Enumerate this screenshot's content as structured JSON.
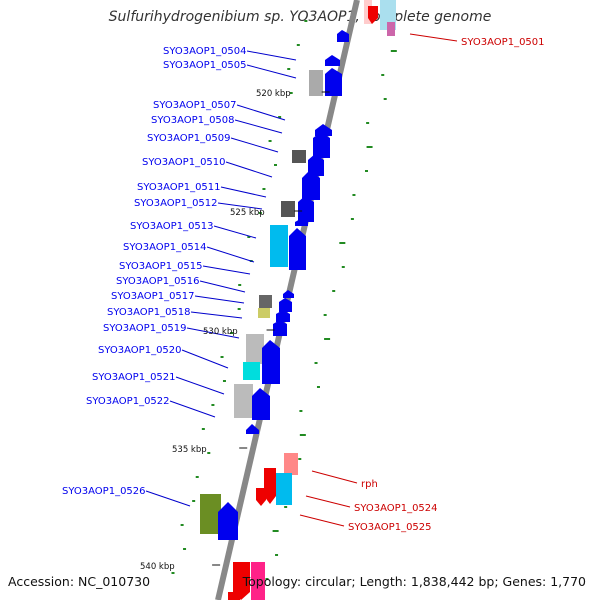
{
  "title": "Sulfurihydrogenibium sp. YO3AOP1, complete genome",
  "footer": {
    "accession": "Accession: NC_010730",
    "summary": "Topology: circular; Length: 1,838,442 bp; Genes: 1,770"
  },
  "scale_labels": [
    "520 kbp",
    "525 kbp",
    "530 kbp",
    "535 kbp",
    "540 kbp"
  ],
  "forward_genes": [
    "SYO3AOP1_0501",
    "rph",
    "SYO3AOP1_0524",
    "SYO3AOP1_0525"
  ],
  "reverse_genes": [
    "SYO3AOP1_0504",
    "SYO3AOP1_0505",
    "SYO3AOP1_0507",
    "SYO3AOP1_0508",
    "SYO3AOP1_0509",
    "SYO3AOP1_0510",
    "SYO3AOP1_0511",
    "SYO3AOP1_0512",
    "SYO3AOP1_0513",
    "SYO3AOP1_0514",
    "SYO3AOP1_0515",
    "SYO3AOP1_0516",
    "SYO3AOP1_0517",
    "SYO3AOP1_0518",
    "SYO3AOP1_0519",
    "SYO3AOP1_0520",
    "SYO3AOP1_0521",
    "SYO3AOP1_0522",
    "SYO3AOP1_0526"
  ],
  "colors": {
    "backbone": "#888888",
    "reverse_strand": "#0000ee",
    "forward_strand": "#ee0000",
    "cds_cyan": "#00ccee",
    "cds_gray": "#aaaaaa",
    "cds_dark": "#555555",
    "cds_olive": "#6b8e23",
    "cds_pink": "#ff8888",
    "gc_tick": "#228b22"
  }
}
